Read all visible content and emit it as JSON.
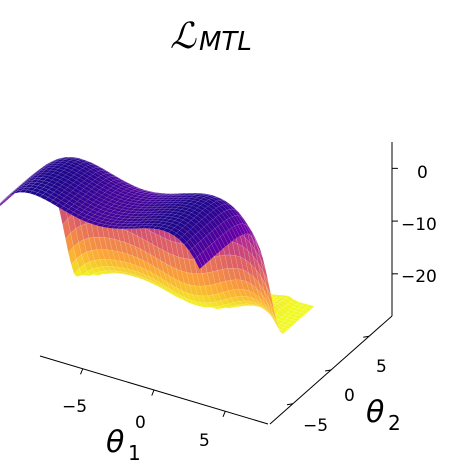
{
  "chart_data": {
    "type": "surface",
    "title": {
      "main": "ℒ",
      "sub": "MTL"
    },
    "xlabel": {
      "main": "θ",
      "sub": "1"
    },
    "ylabel": {
      "main": "θ",
      "sub": "2"
    },
    "x_ticks": [
      -5,
      0,
      5
    ],
    "y_ticks": [
      -5,
      0,
      5
    ],
    "z_ticks": [
      0,
      -10,
      -20
    ],
    "x_tick_labels": [
      "−5",
      "0",
      "5"
    ],
    "y_tick_labels": [
      "−5",
      "0",
      "5"
    ],
    "z_tick_labels": [
      "0",
      "−10",
      "−20"
    ],
    "xlim": [
      -8,
      8
    ],
    "ylim": [
      -8,
      8
    ],
    "zlim": [
      -28,
      5
    ],
    "colormap": "plasma",
    "colors": [
      "#0d0887",
      "#6a00a8",
      "#b12a90",
      "#e16462",
      "#fca636",
      "#f0f921"
    ],
    "grid": false,
    "surface_shape": "double-well valley along θ1 with wells near θ1 ≈ ±4.5 and central hump, rising toward the back (larger θ2) into a flat yellow plateau with ridges"
  }
}
